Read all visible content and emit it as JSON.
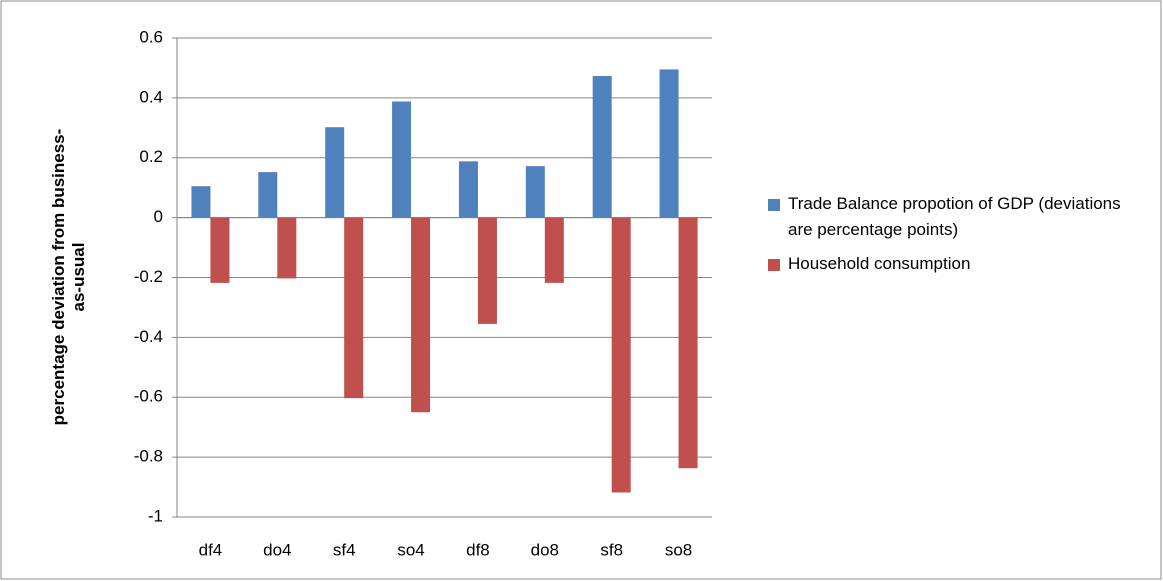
{
  "chart_data": {
    "type": "bar",
    "ylabel": "percentage deviation from business-as-usual",
    "categories": [
      "df4",
      "do4",
      "sf4",
      "so4",
      "df8",
      "do8",
      "sf8",
      "so8"
    ],
    "series": [
      {
        "name": "Trade Balance propotion of GDP (deviations are percentage points)",
        "color": "#4f81bd",
        "values": [
          0.105,
          0.152,
          0.302,
          0.388,
          0.188,
          0.172,
          0.473,
          0.495
        ]
      },
      {
        "name": "Household consumption",
        "color": "#c0504d",
        "values": [
          -0.218,
          -0.203,
          -0.603,
          -0.65,
          -0.355,
          -0.218,
          -0.918,
          -0.837
        ]
      }
    ],
    "ylim": [
      -1,
      0.6
    ],
    "yticks": [
      -1,
      -0.8,
      -0.6,
      -0.4,
      -0.2,
      0,
      0.2,
      0.4,
      0.6
    ],
    "grid": true,
    "legend": "right"
  }
}
